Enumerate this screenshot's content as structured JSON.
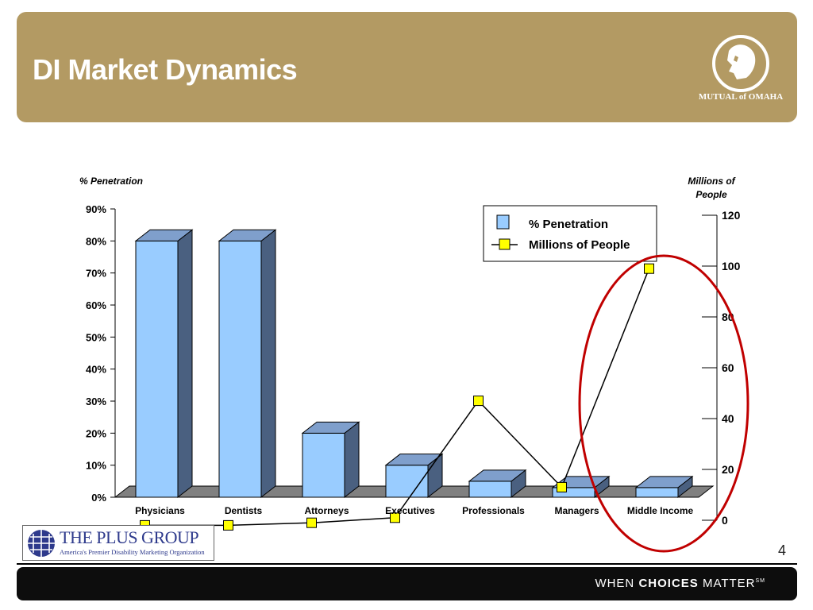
{
  "slide": {
    "title": "DI Market Dynamics",
    "page_number": "4",
    "brand": "MUTUAL of OMAHA",
    "tagline_prefix": "WHEN ",
    "tagline_bold": "CHOICES",
    "tagline_suffix": " MATTER",
    "tagline_mark": "SM"
  },
  "partner": {
    "name": "THE PLUS GROUP",
    "tagline": "America's Premier Disability Marketing Organization"
  },
  "chart_data": {
    "type": "bar",
    "categories": [
      "Physicians",
      "Dentists",
      "Attorneys",
      "Executives",
      "Professionals",
      "Managers",
      "Middle Income"
    ],
    "series": [
      {
        "name": "% Penetration",
        "type": "bar",
        "axis": "left",
        "values": [
          80,
          80,
          20,
          10,
          5,
          3,
          3
        ],
        "color": "#99ccff"
      },
      {
        "name": "Millions of People",
        "type": "line",
        "axis": "right",
        "values": [
          -2,
          -2,
          -1,
          1,
          47,
          13,
          99
        ],
        "color": "#ffff00"
      }
    ],
    "left_axis": {
      "title": "% Penetration",
      "ticks": [
        "0%",
        "10%",
        "20%",
        "30%",
        "40%",
        "50%",
        "60%",
        "70%",
        "80%",
        "90%"
      ],
      "range": [
        0,
        90
      ]
    },
    "right_axis": {
      "title_line1": "Millions of",
      "title_line2": "People",
      "ticks": [
        "0",
        "20",
        "40",
        "60",
        "80",
        "100",
        "120"
      ],
      "range": [
        0,
        120
      ]
    },
    "legend_position": "top-right",
    "annotation": "red ellipse around Managers and Middle Income"
  },
  "colors": {
    "header_bg": "#b39a63",
    "bar_front": "#99ccff",
    "bar_side": "#4a6080",
    "bar_top": "#7f9fcc",
    "marker": "#ffff00",
    "highlight": "#c00000"
  }
}
